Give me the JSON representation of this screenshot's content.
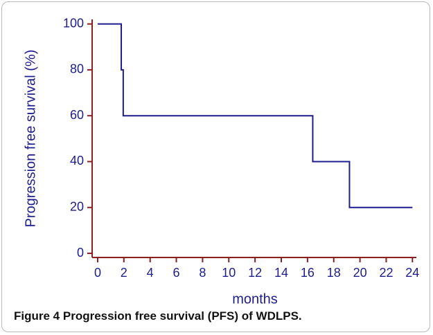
{
  "chart_data": {
    "type": "line",
    "y_label": "Progression free survival  (%)",
    "x_label": "months",
    "caption_label": "Figure 4",
    "caption_text": "Progression free survival (PFS) of WDLPS.",
    "x": [
      0,
      1.8,
      1.8,
      1.95,
      1.95,
      16.4,
      16.4,
      19.2,
      19.2,
      24
    ],
    "values": [
      100,
      100,
      80,
      80,
      60,
      60,
      40,
      40,
      20,
      20
    ],
    "color": "#1c1c8f",
    "axis_color": "#8b1f1f",
    "xlim": [
      -0.42,
      24.3
    ],
    "ylim": [
      -1.8,
      102
    ],
    "xticks": [
      0,
      2,
      4,
      6,
      8,
      10,
      12,
      14,
      16,
      18,
      20,
      22,
      24
    ],
    "yticks": [
      0,
      20,
      40,
      60,
      80,
      100
    ]
  }
}
